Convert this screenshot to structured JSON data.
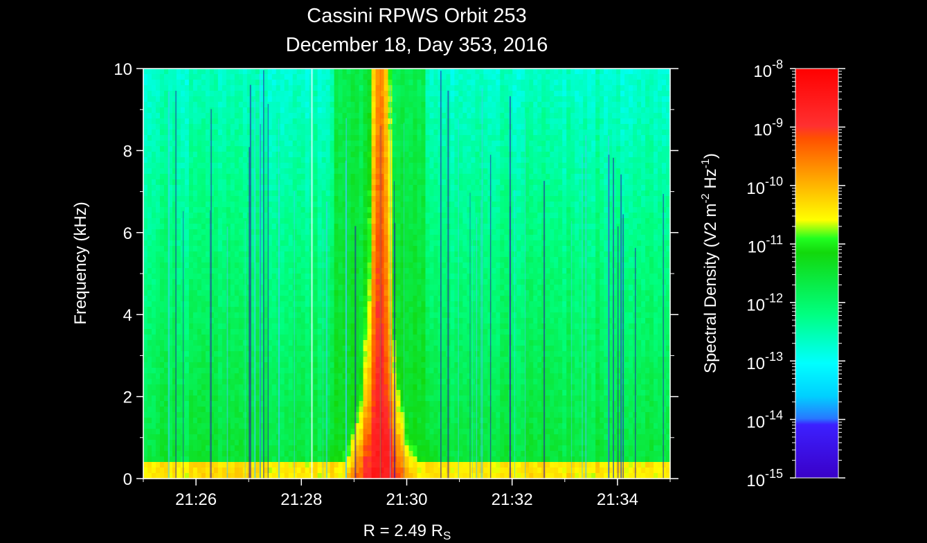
{
  "chart_data": {
    "type": "heatmap",
    "title": "Cassini RPWS Orbit 253",
    "subtitle": "December 18, Day 353, 2016",
    "ylabel": "Frequency (kHz)",
    "xlabel_prefix": "R = 2.49 R",
    "xlabel_sub": "S",
    "x_ticks": [
      "21:26",
      "21:28",
      "21:30",
      "21:32",
      "21:34"
    ],
    "x_tick_minutes": [
      26,
      28,
      30,
      32,
      34
    ],
    "xlim_minutes": [
      25,
      35
    ],
    "y_ticks": [
      0,
      2,
      4,
      6,
      8,
      10
    ],
    "ylim": [
      0,
      10
    ],
    "colorbar": {
      "label_main": "Spectral Density (V2 m",
      "label_exp1": "-2",
      "label_mid": " Hz",
      "label_exp2": "-1",
      "label_end": ")",
      "scale": "log",
      "range": [
        -15,
        -8
      ],
      "tick_base": "10",
      "tick_exponents": [
        "-8",
        "-9",
        "-10",
        "-11",
        "-12",
        "-13",
        "-14",
        "-15"
      ],
      "colors": [
        "#3a00c8",
        "#2828ff",
        "#1e9bff",
        "#00ffff",
        "#00e060",
        "#18e218",
        "#ffff00",
        "#ffa000",
        "#ff3000",
        "#ff0000"
      ]
    },
    "features": [
      {
        "name": "broadband emission",
        "center_minutes": 29.5,
        "peak_log_density": -8.5,
        "max_frequency_khz": 10
      }
    ]
  }
}
